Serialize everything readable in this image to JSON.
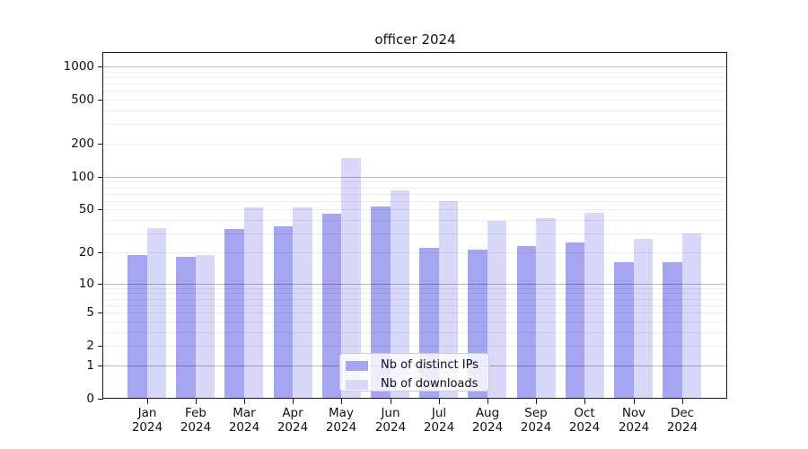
{
  "chart_data": {
    "type": "bar",
    "title": "officer 2024",
    "categories": [
      "Jan",
      "Feb",
      "Mar",
      "Apr",
      "May",
      "Jun",
      "Jul",
      "Aug",
      "Sep",
      "Oct",
      "Nov",
      "Dec"
    ],
    "year_label": "2024",
    "series": [
      {
        "name": "Nb of distinct IPs",
        "color": "#a5a5f2",
        "values": [
          19,
          18,
          33,
          35,
          46,
          53,
          22,
          21,
          23,
          25,
          16,
          16
        ]
      },
      {
        "name": "Nb of downloads",
        "color": "#d8d8f8",
        "values": [
          34,
          19,
          52,
          52,
          148,
          75,
          60,
          39,
          42,
          47,
          27,
          30
        ]
      }
    ],
    "xlabel": "",
    "ylabel": "",
    "yscale": "log1p",
    "yticks": [
      0,
      1,
      2,
      5,
      10,
      20,
      50,
      100,
      200,
      500,
      1000
    ],
    "ylim": [
      0,
      1300
    ],
    "grid": "horizontal major and minor",
    "legend_position": "inside lower center"
  }
}
